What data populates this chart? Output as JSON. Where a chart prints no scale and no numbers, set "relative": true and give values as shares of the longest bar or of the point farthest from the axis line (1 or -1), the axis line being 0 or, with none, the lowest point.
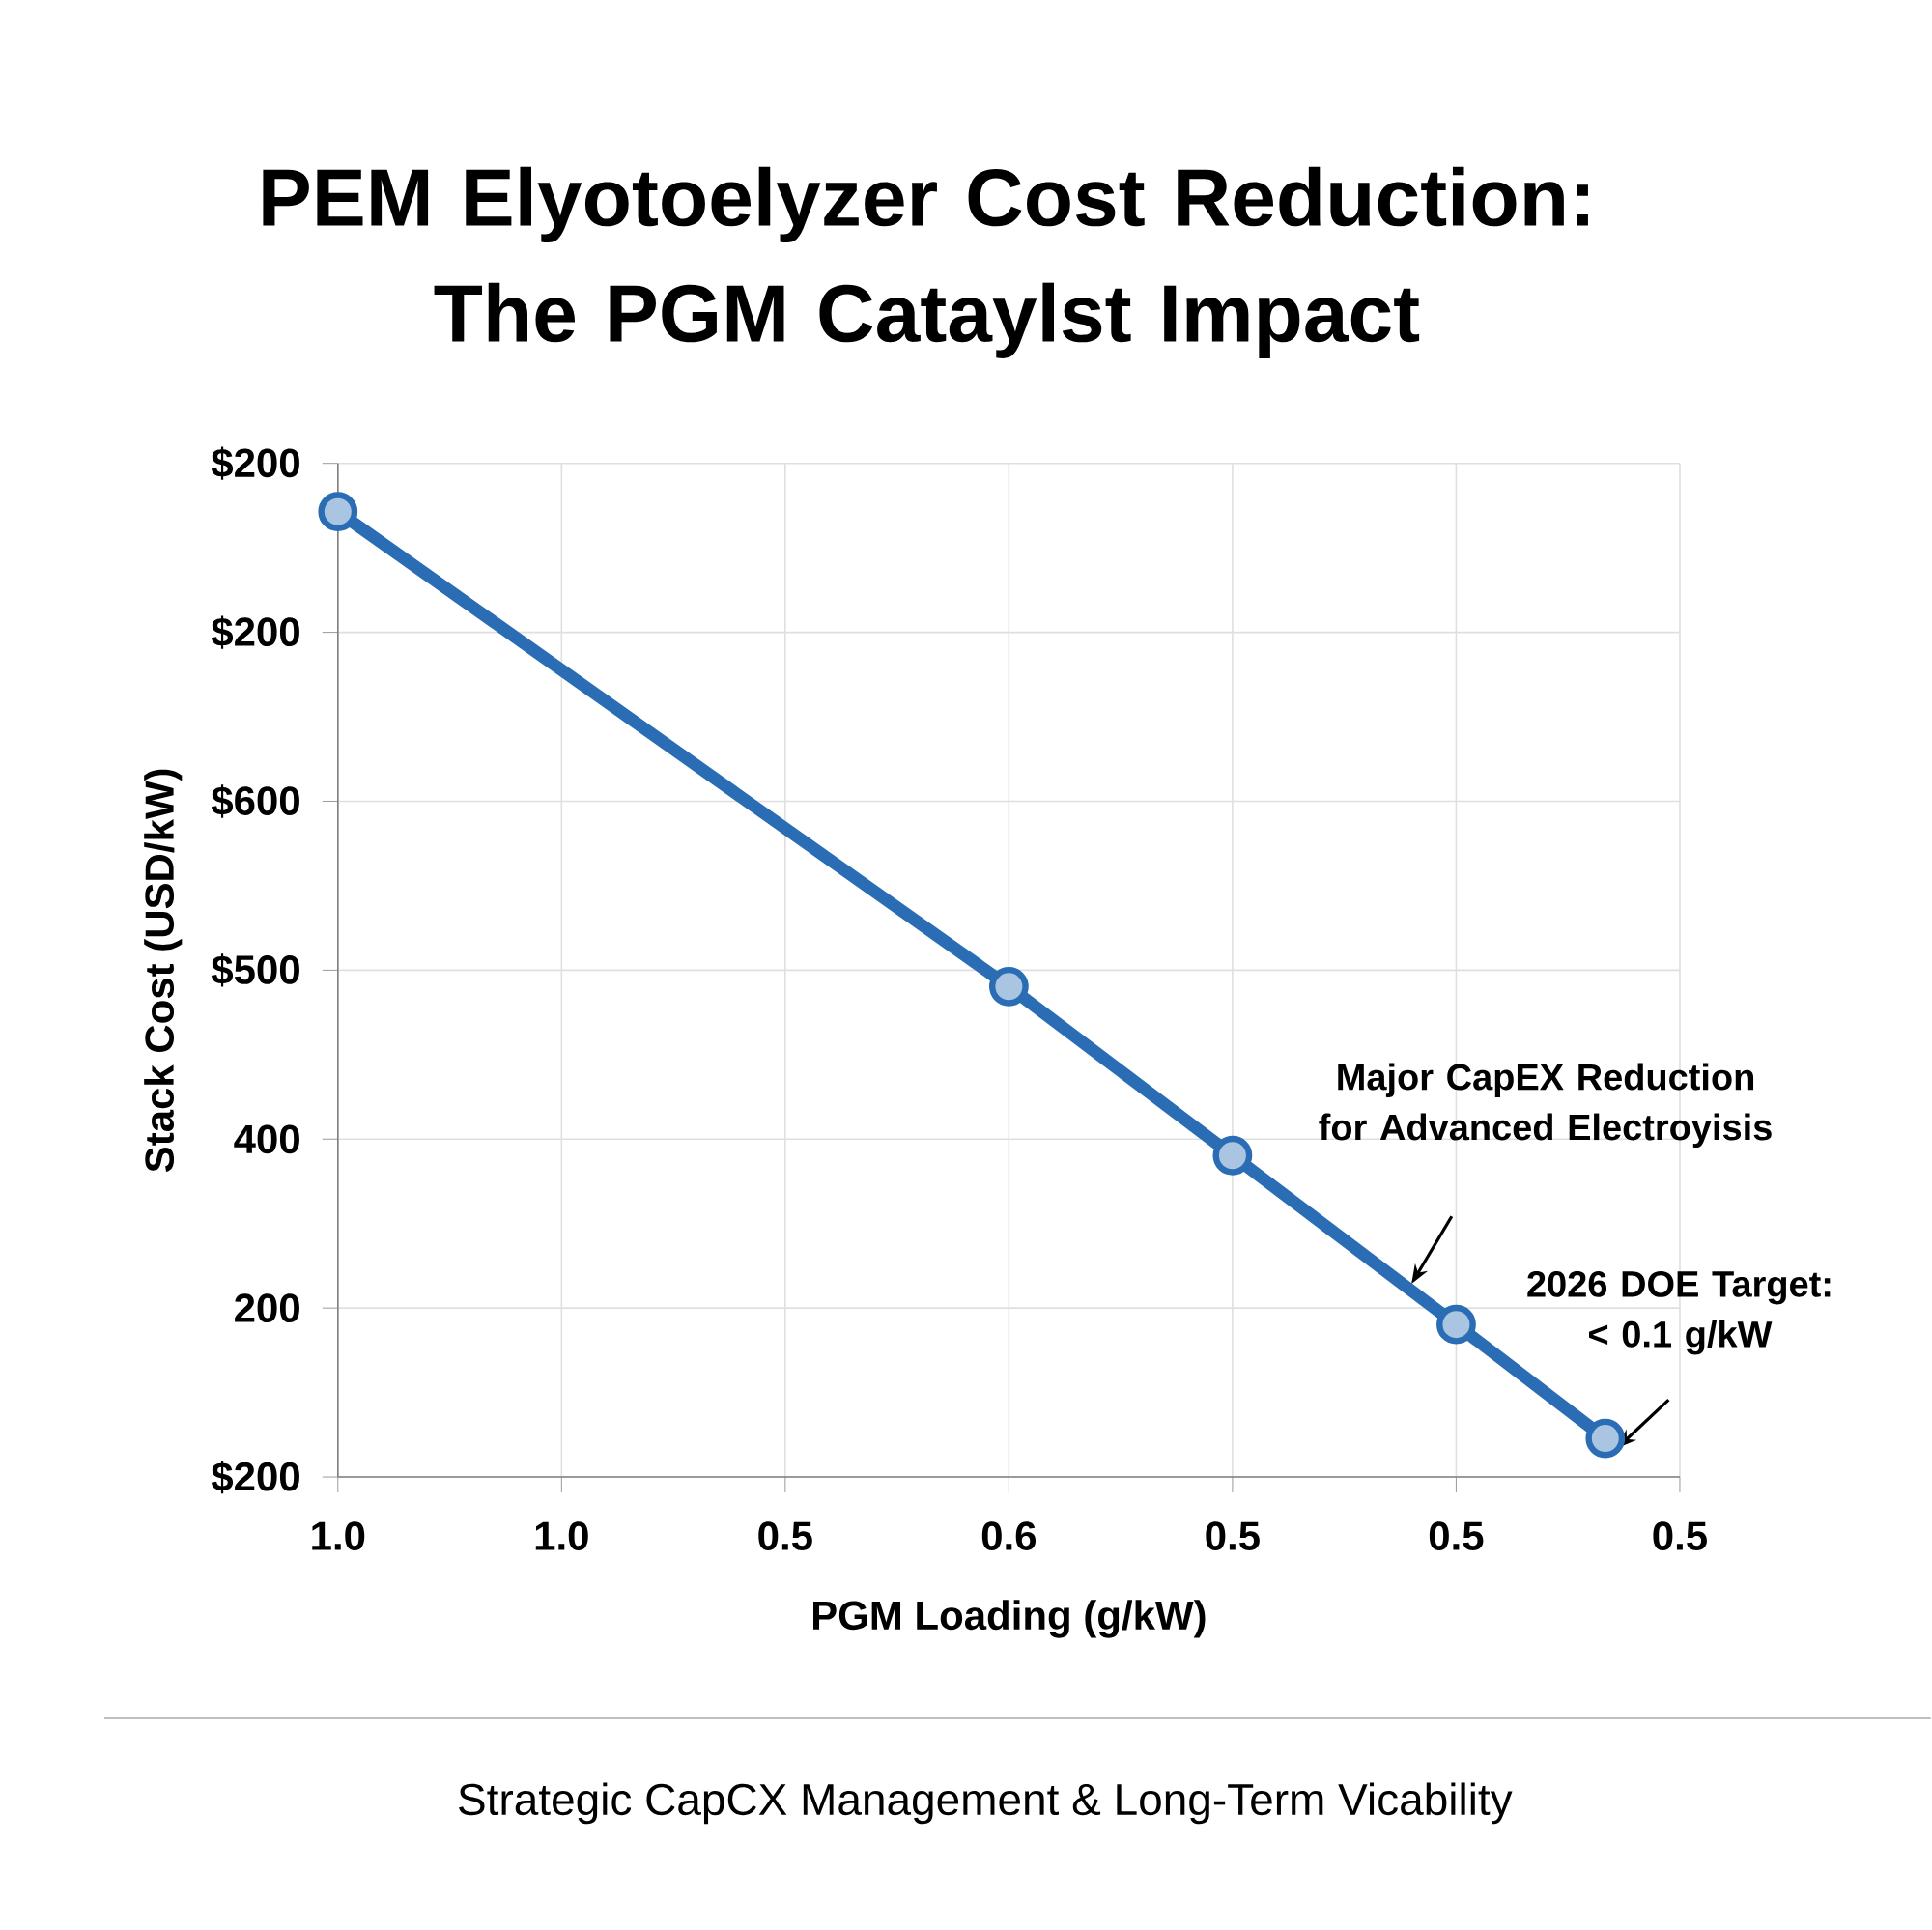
{
  "chart_data": {
    "type": "line",
    "title": "PEM Elyotoelyzer Cost Reduction: The PGM Cataylst Impact",
    "xlabel": "PGM Loading (g/kW)",
    "ylabel": "Stack Cost (USD/kW)",
    "categories": [
      "1.0",
      null,
      null,
      "1.0",
      null,
      null,
      "0.5",
      null,
      null,
      "0.6",
      null,
      null,
      "0.5",
      null,
      null,
      "0.5",
      null,
      null,
      "0.5"
    ],
    "relative": true,
    "series": [
      {
        "color": "#2a6db5",
        "values": [
          1,
          null,
          null,
          null,
          null,
          null,
          null,
          null,
          null,
          0.508,
          null,
          null,
          0.333,
          null,
          null,
          0.158,
          null,
          0.04,
          null
        ]
      }
    ],
    "grid": true,
    "marker": "circle",
    "line_style": "solid",
    "annotations": [
      "$200",
      "200",
      "400",
      "$500",
      "$600",
      "$200",
      "$200",
      "Major CapEX Reduction for Advanced Electroyisis",
      "2026 DOE Target: < 0.1 g/kW",
      "Strategic CapCX Management & Long-Term Vicability"
    ]
  }
}
